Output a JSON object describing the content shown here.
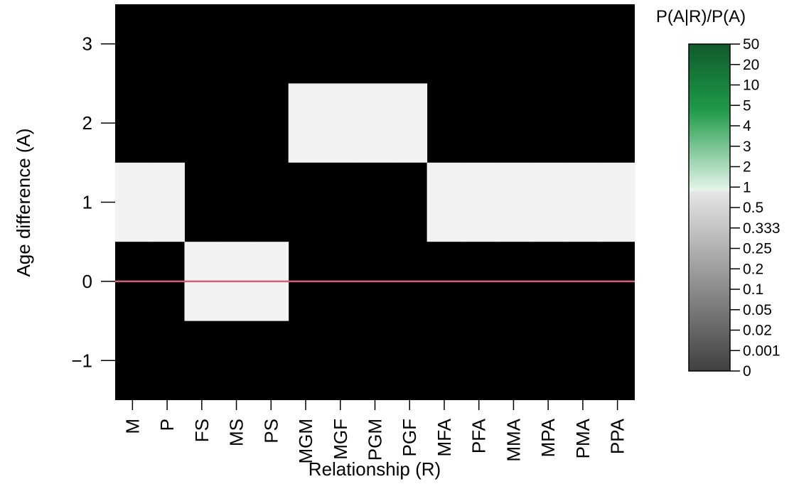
{
  "chart_data": {
    "type": "heatmap",
    "xlabel": "Relationship (R)",
    "ylabel": "Age difference (A)",
    "legend_title": "P(A|R)/P(A)",
    "x_categories": [
      "M",
      "P",
      "FS",
      "MS",
      "PS",
      "MGM",
      "MGF",
      "PGM",
      "PGF",
      "MFA",
      "PFA",
      "MMA",
      "MPA",
      "PMA",
      "PPA"
    ],
    "y_ticks": [
      -1,
      0,
      1,
      2,
      3
    ],
    "y_tick_labels": [
      "−1",
      "0",
      "1",
      "2",
      "3"
    ],
    "ylim": [
      -1.5,
      3.5
    ],
    "value_description": "ratio P(A|R)/P(A); 0 shown black, near 1 shown light grey",
    "cells": [
      {
        "relationship": "M",
        "age_from": 0.5,
        "age_to": 1.5,
        "ratio": 1
      },
      {
        "relationship": "P",
        "age_from": 0.5,
        "age_to": 1.5,
        "ratio": 1
      },
      {
        "relationship": "FS",
        "age_from": -0.5,
        "age_to": 0.5,
        "ratio": 1
      },
      {
        "relationship": "MS",
        "age_from": -0.5,
        "age_to": 0.5,
        "ratio": 1
      },
      {
        "relationship": "PS",
        "age_from": -0.5,
        "age_to": 0.5,
        "ratio": 1
      },
      {
        "relationship": "MGM",
        "age_from": 1.5,
        "age_to": 2.5,
        "ratio": 1
      },
      {
        "relationship": "MGF",
        "age_from": 1.5,
        "age_to": 2.5,
        "ratio": 1
      },
      {
        "relationship": "PGM",
        "age_from": 1.5,
        "age_to": 2.5,
        "ratio": 1
      },
      {
        "relationship": "PGF",
        "age_from": 1.5,
        "age_to": 2.5,
        "ratio": 1
      },
      {
        "relationship": "MFA",
        "age_from": 0.5,
        "age_to": 1.5,
        "ratio": 1
      },
      {
        "relationship": "PFA",
        "age_from": 0.5,
        "age_to": 1.5,
        "ratio": 1
      },
      {
        "relationship": "MMA",
        "age_from": 0.5,
        "age_to": 1.5,
        "ratio": 1
      },
      {
        "relationship": "MPA",
        "age_from": 0.5,
        "age_to": 1.5,
        "ratio": 1
      },
      {
        "relationship": "PMA",
        "age_from": 0.5,
        "age_to": 1.5,
        "ratio": 1
      },
      {
        "relationship": "PPA",
        "age_from": 0.5,
        "age_to": 1.5,
        "ratio": 1
      }
    ],
    "background_ratio": 0,
    "reference_line_y": 0,
    "reference_line_color": "#d1607e",
    "colors": {
      "zero": "#000000",
      "one": "#f2f2f2"
    },
    "legend_labels": [
      "50",
      "20",
      "10",
      "5",
      "4",
      "3",
      "2",
      "1",
      "0.5",
      "0.333",
      "0.25",
      "0.2",
      "0.1",
      "0.05",
      "0.02",
      "0.001",
      "0"
    ],
    "legend_gradient": {
      "green_top": "#0f5a2c",
      "green_mid": "#1e9a48",
      "green_light": "#e8f6ec",
      "grey_light": "#e6e6e6",
      "grey_dark": "#404040"
    }
  }
}
